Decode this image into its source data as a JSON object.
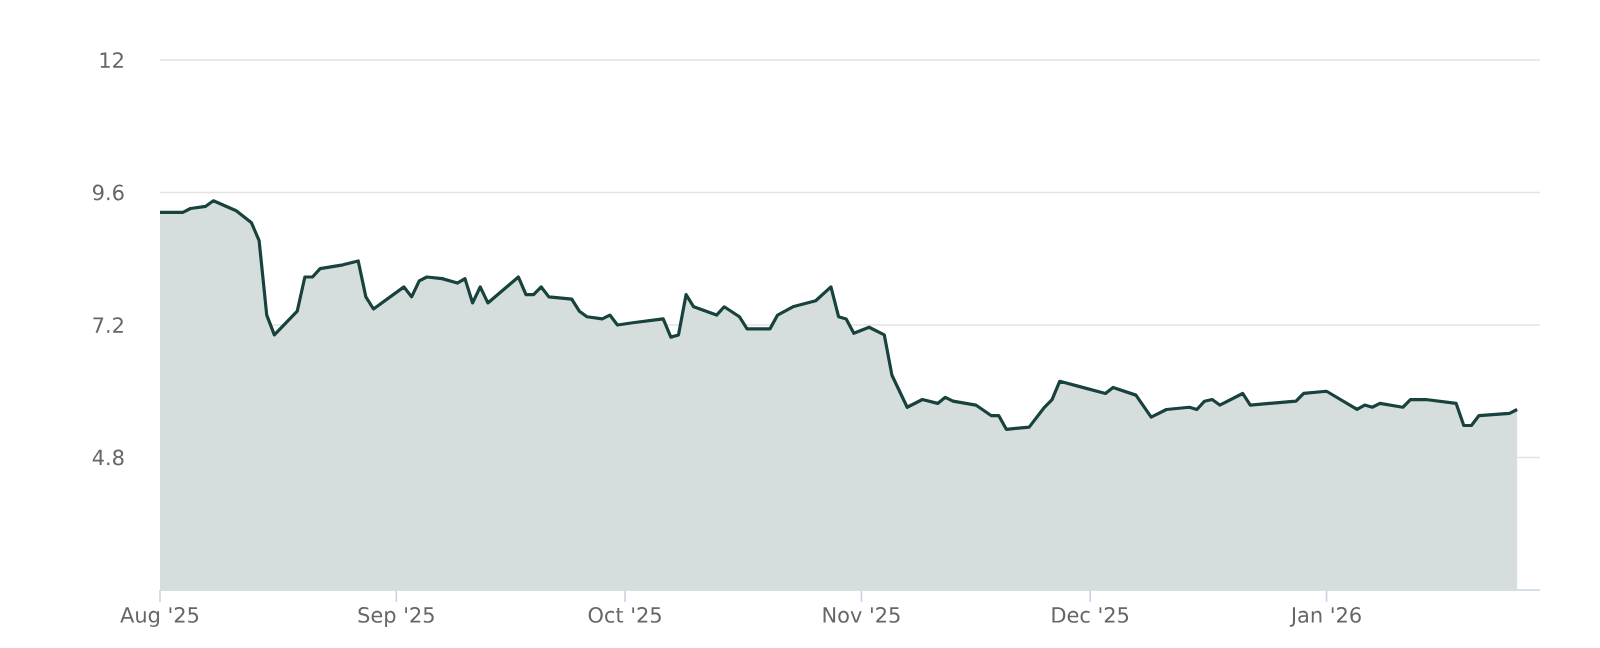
{
  "chart_data": {
    "type": "area",
    "x": [
      "2025-08-01",
      "2025-08-04",
      "2025-08-05",
      "2025-08-07",
      "2025-08-08",
      "2025-08-11",
      "2025-08-13",
      "2025-08-14",
      "2025-08-15",
      "2025-08-16",
      "2025-08-19",
      "2025-08-20",
      "2025-08-21",
      "2025-08-22",
      "2025-08-25",
      "2025-08-27",
      "2025-08-28",
      "2025-08-29",
      "2025-09-02",
      "2025-09-03",
      "2025-09-04",
      "2025-09-05",
      "2025-09-07",
      "2025-09-09",
      "2025-09-10",
      "2025-09-11",
      "2025-09-12",
      "2025-09-13",
      "2025-09-17",
      "2025-09-18",
      "2025-09-19",
      "2025-09-20",
      "2025-09-21",
      "2025-09-24",
      "2025-09-25",
      "2025-09-26",
      "2025-09-28",
      "2025-09-29",
      "2025-09-30",
      "2025-10-02",
      "2025-10-06",
      "2025-10-07",
      "2025-10-08",
      "2025-10-09",
      "2025-10-10",
      "2025-10-13",
      "2025-10-14",
      "2025-10-16",
      "2025-10-17",
      "2025-10-20",
      "2025-10-21",
      "2025-10-23",
      "2025-10-26",
      "2025-10-28",
      "2025-10-29",
      "2025-10-30",
      "2025-10-31",
      "2025-11-02",
      "2025-11-04",
      "2025-11-05",
      "2025-11-07",
      "2025-11-09",
      "2025-11-11",
      "2025-11-12",
      "2025-11-13",
      "2025-11-16",
      "2025-11-18",
      "2025-11-19",
      "2025-11-20",
      "2025-11-23",
      "2025-11-25",
      "2025-11-26",
      "2025-11-27",
      "2025-11-30",
      "2025-12-03",
      "2025-12-04",
      "2025-12-07",
      "2025-12-09",
      "2025-12-11",
      "2025-12-14",
      "2025-12-15",
      "2025-12-16",
      "2025-12-17",
      "2025-12-18",
      "2025-12-21",
      "2025-12-22",
      "2025-12-28",
      "2025-12-29",
      "2026-01-01",
      "2026-01-05",
      "2026-01-06",
      "2026-01-07",
      "2026-01-08",
      "2026-01-11",
      "2026-01-12",
      "2026-01-14",
      "2026-01-18",
      "2026-01-19",
      "2026-01-20",
      "2026-01-21",
      "2026-01-25",
      "2026-01-26"
    ],
    "series": [
      {
        "color": "#17423d",
        "values": [
          9.24,
          9.24,
          9.31,
          9.35,
          9.45,
          9.27,
          9.05,
          8.73,
          7.38,
          7.02,
          7.45,
          8.07,
          8.07,
          8.22,
          8.29,
          8.36,
          7.71,
          7.49,
          7.89,
          7.71,
          8.0,
          8.07,
          8.04,
          7.96,
          8.04,
          7.6,
          7.89,
          7.6,
          8.07,
          7.75,
          7.75,
          7.89,
          7.71,
          7.67,
          7.45,
          7.35,
          7.31,
          7.38,
          7.2,
          7.24,
          7.31,
          6.98,
          7.02,
          7.75,
          7.53,
          7.38,
          7.53,
          7.35,
          7.13,
          7.13,
          7.38,
          7.53,
          7.64,
          7.89,
          7.35,
          7.31,
          7.05,
          7.16,
          7.02,
          6.29,
          5.71,
          5.85,
          5.78,
          5.89,
          5.82,
          5.75,
          5.56,
          5.56,
          5.31,
          5.35,
          5.71,
          5.85,
          6.18,
          6.07,
          5.96,
          6.07,
          5.93,
          5.53,
          5.67,
          5.71,
          5.67,
          5.82,
          5.85,
          5.75,
          5.96,
          5.75,
          5.82,
          5.96,
          6.0,
          5.67,
          5.75,
          5.71,
          5.78,
          5.71,
          5.85,
          5.85,
          5.78,
          5.38,
          5.38,
          5.56,
          5.6,
          5.67
        ]
      }
    ],
    "xlim": [
      "2025-08-01",
      "2026-01-29"
    ],
    "xticks": [
      {
        "value": "2025-08-01",
        "label": "Aug '25"
      },
      {
        "value": "2025-09-01",
        "label": "Sep '25"
      },
      {
        "value": "2025-10-01",
        "label": "Oct '25"
      },
      {
        "value": "2025-11-01",
        "label": "Nov '25"
      },
      {
        "value": "2025-12-01",
        "label": "Dec '25"
      },
      {
        "value": "2026-01-01",
        "label": "Jan '26"
      }
    ],
    "ylim": [
      2.4,
      12
    ],
    "yticks": [
      4.8,
      7.2,
      9.6,
      12
    ],
    "grid": "y"
  }
}
